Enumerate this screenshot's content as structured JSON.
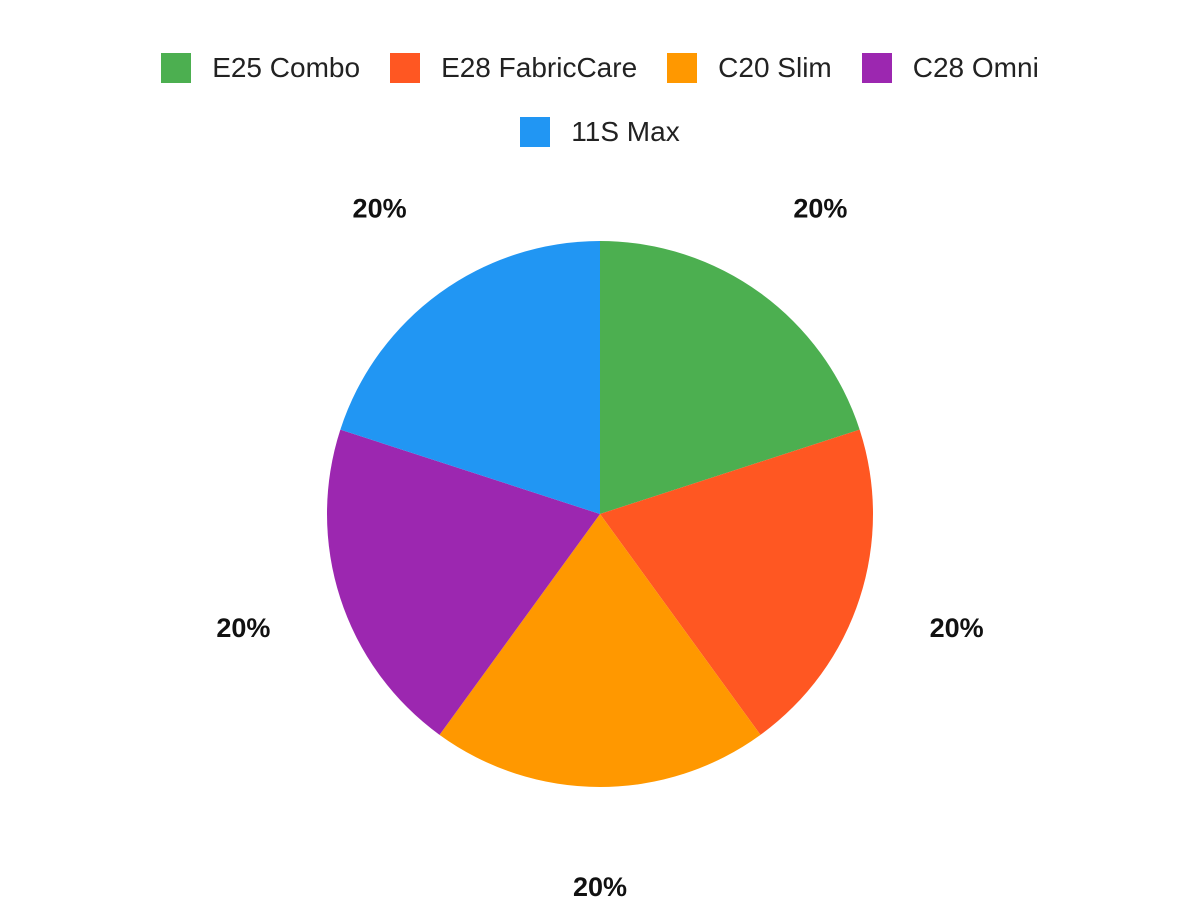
{
  "chart_data": {
    "type": "pie",
    "title": "",
    "categories": [
      "E25 Combo",
      "E28 FabricCare",
      "C20 Slim",
      "C28 Omni",
      "11S Max"
    ],
    "values": [
      20,
      20,
      20,
      20,
      20
    ],
    "labels": [
      "20%",
      "20%",
      "20%",
      "20%",
      "20%"
    ],
    "colors": [
      "#4CAF50",
      "#FF5722",
      "#FF9800",
      "#9C27B0",
      "#2196F3"
    ],
    "legend_position": "top",
    "start_angle_deg": 0,
    "direction": "clockwise"
  }
}
